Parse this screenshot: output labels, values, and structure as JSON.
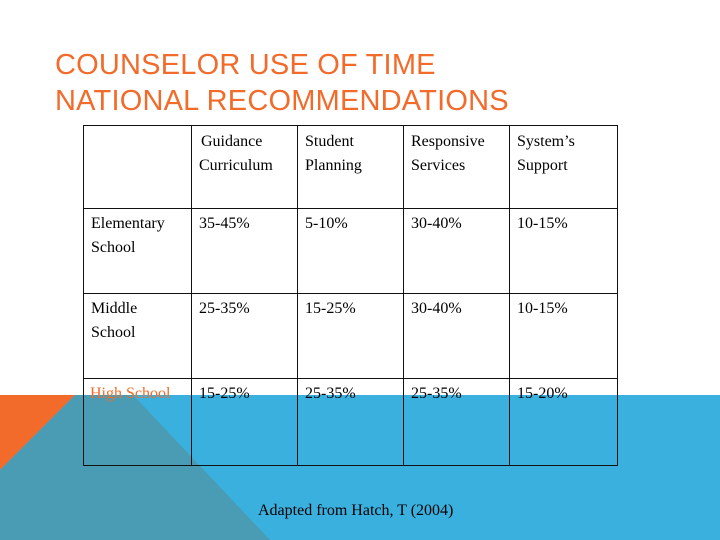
{
  "slide": {
    "title_lines": [
      "COUNSELOR USE OF TIME",
      "NATIONAL RECOMMENDATIONS"
    ],
    "colors": {
      "title": "#f26b2b",
      "orange_shape": "#f26b2b",
      "blue_band": "#3ab0de",
      "teal_triangle": "#4a9cb4",
      "table_border": "#111111"
    },
    "table": {
      "columns": [
        {
          "label_lines": [
            "",
            ""
          ]
        },
        {
          "label_lines": [
            "Guidance",
            "Curriculum"
          ]
        },
        {
          "label_lines": [
            "Student",
            "Planning"
          ]
        },
        {
          "label_lines": [
            "Responsive",
            "Services"
          ]
        },
        {
          "label_lines": [
            "System’s",
            "Support"
          ]
        }
      ],
      "rows": [
        {
          "label_lines": [
            "Elementary",
            "School"
          ],
          "values": [
            "35-45%",
            "5-10%",
            "30-40%",
            "10-15%"
          ]
        },
        {
          "label_lines": [
            "Middle",
            "School"
          ],
          "values": [
            "25-35%",
            "15-25%",
            "30-40%",
            "10-15%"
          ]
        },
        {
          "label_lines": [
            "High School"
          ],
          "values": [
            "15-25%",
            "25-35%",
            "25-35%",
            "15-20%"
          ]
        }
      ]
    },
    "source_note": "Adapted from Hatch, T (2004)"
  }
}
